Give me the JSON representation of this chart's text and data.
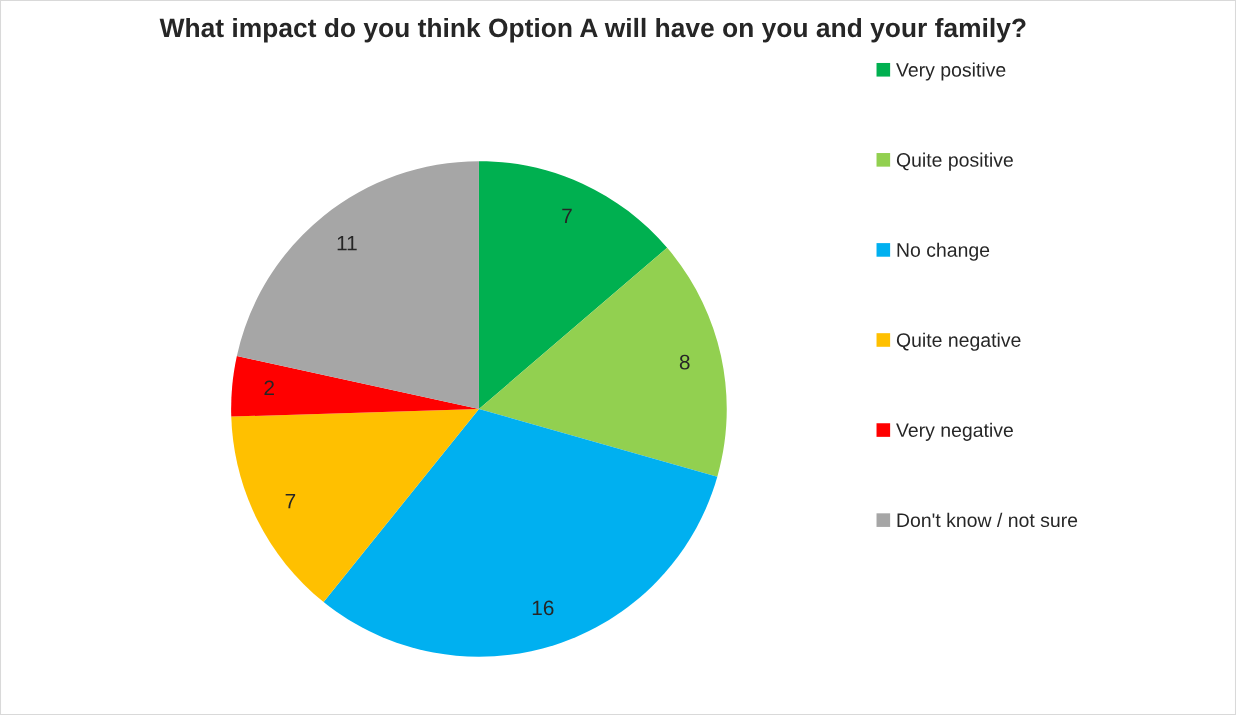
{
  "chart_data": {
    "type": "pie",
    "title": "What impact do you think Option A will have on you and your family?",
    "categories": [
      "Very positive",
      "Quite positive",
      "No change",
      "Quite negative",
      "Very negative",
      "Don't know / not sure"
    ],
    "values": [
      7,
      8,
      16,
      7,
      2,
      11
    ],
    "colors": [
      "#00b050",
      "#92d050",
      "#00b0f0",
      "#ffc000",
      "#ff0000",
      "#a6a6a6"
    ],
    "data_labels": true,
    "legend": "right"
  }
}
